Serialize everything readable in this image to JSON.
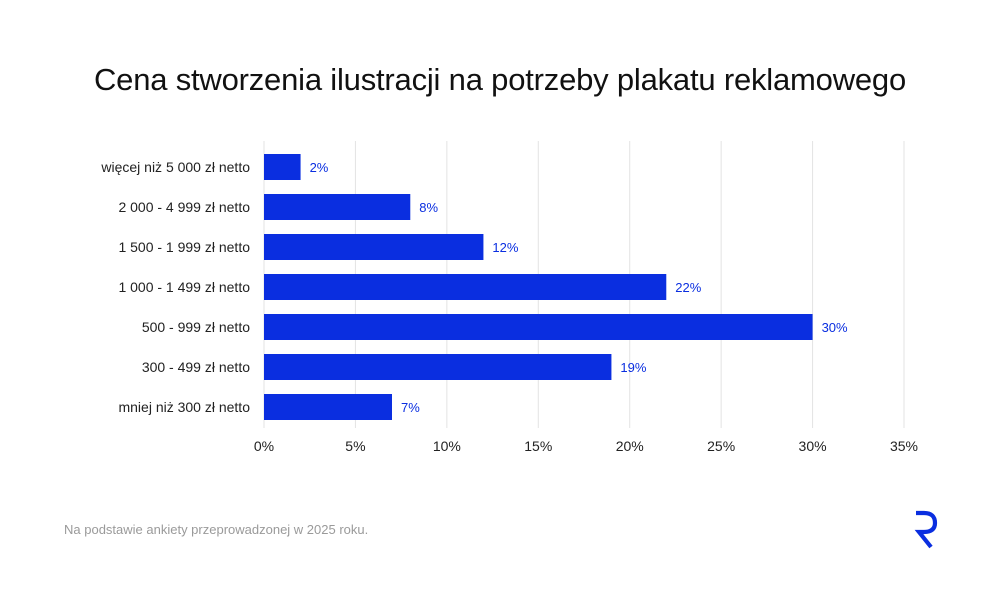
{
  "title": "Cena stworzenia ilustracji na potrzeby plakatu reklamowego",
  "footnote": "Na podstawie ankiety przeprowadzonej w 2025 roku.",
  "logo_icon": "brand-r-logo-icon",
  "colors": {
    "bar": "#0a2ee0",
    "grid": "#e3e3e3",
    "value_label": "#0a2ee0"
  },
  "chart_data": {
    "type": "bar",
    "orientation": "horizontal",
    "categories": [
      "więcej niż 5 000 zł netto",
      "2 000 - 4 999 zł netto",
      "1 500 - 1 999 zł netto",
      "1 000 - 1 499 zł netto",
      "500 - 999 zł netto",
      "300 - 499 zł netto",
      "mniej niż 300 zł netto"
    ],
    "values": [
      2,
      8,
      12,
      22,
      30,
      19,
      7
    ],
    "value_labels": [
      "2%",
      "8%",
      "12%",
      "22%",
      "30%",
      "19%",
      "7%"
    ],
    "xticks": [
      0,
      5,
      10,
      15,
      20,
      25,
      30,
      35
    ],
    "xtick_labels": [
      "0%",
      "5%",
      "10%",
      "15%",
      "20%",
      "25%",
      "30%",
      "35%"
    ],
    "xlim": [
      0,
      35
    ],
    "grid": true,
    "legend": false
  }
}
